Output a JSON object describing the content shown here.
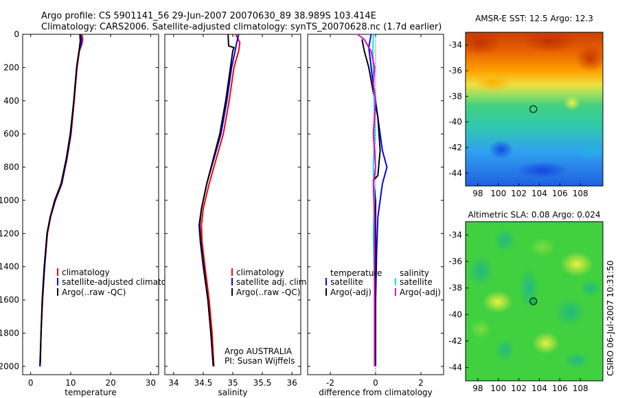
{
  "titles": {
    "line1": "Argo profile: CS 5901141_56 29-Jun-2007 20070630_89 38.989S 103.414E",
    "line2": "Climatology: CARS2006. Satellite-adjusted climatology: synTS_20070628.nc (1.7d earlier)"
  },
  "colors": {
    "climatology": "#ff0000",
    "satellite": "#0000ff",
    "argo": "#000000",
    "satellite_sal": "#00e5e5",
    "argo_sal": "#e000e0"
  },
  "footer": {
    "credit1": "Argo AUSTRALIA",
    "credit2": "PI: Susan Wijffels",
    "stamp": "CSIRO 06-Jul-2007 10:31:50"
  },
  "chart_data": [
    {
      "id": "temperature",
      "type": "line",
      "xlabel": "temperature",
      "ylabel": "",
      "xlim": [
        -2,
        32
      ],
      "ylim": [
        2050,
        0
      ],
      "xticks": [
        0,
        10,
        20,
        30
      ],
      "yticks": [
        0,
        200,
        400,
        600,
        800,
        1000,
        1200,
        1400,
        1600,
        1800,
        2000
      ],
      "legend": [
        "climatology",
        "satellite-adjusted climatology",
        "Argo(..raw -QC)"
      ],
      "series": [
        {
          "name": "climatology",
          "color": "#ff0000",
          "points": [
            [
              12.8,
              0
            ],
            [
              13.0,
              30
            ],
            [
              12.8,
              60
            ],
            [
              12.2,
              100
            ],
            [
              11.6,
              200
            ],
            [
              10.9,
              400
            ],
            [
              10.1,
              600
            ],
            [
              9.1,
              750
            ],
            [
              7.8,
              900
            ],
            [
              6.2,
              1000
            ],
            [
              5.0,
              1100
            ],
            [
              4.2,
              1200
            ],
            [
              3.5,
              1400
            ],
            [
              3.0,
              1600
            ],
            [
              2.6,
              1800
            ],
            [
              2.4,
              2000
            ]
          ]
        },
        {
          "name": "satellite-adjusted climatology",
          "color": "#0000ff",
          "points": [
            [
              12.5,
              0
            ],
            [
              12.7,
              30
            ],
            [
              12.6,
              60
            ],
            [
              12.1,
              100
            ],
            [
              11.5,
              200
            ],
            [
              10.8,
              400
            ],
            [
              10.0,
              600
            ],
            [
              9.0,
              750
            ],
            [
              7.7,
              900
            ],
            [
              6.1,
              1000
            ],
            [
              4.9,
              1100
            ],
            [
              4.1,
              1200
            ],
            [
              3.5,
              1400
            ],
            [
              2.9,
              1600
            ],
            [
              2.6,
              1800
            ],
            [
              2.3,
              2000
            ]
          ]
        },
        {
          "name": "Argo(..raw -QC)",
          "color": "#000000",
          "points": [
            [
              12.3,
              0
            ],
            [
              12.4,
              40
            ],
            [
              12.1,
              100
            ],
            [
              11.5,
              200
            ],
            [
              10.8,
              400
            ],
            [
              9.9,
              600
            ],
            [
              8.9,
              750
            ],
            [
              7.6,
              900
            ],
            [
              6.0,
              1000
            ],
            [
              4.9,
              1100
            ],
            [
              4.1,
              1200
            ],
            [
              3.4,
              1400
            ],
            [
              2.9,
              1600
            ],
            [
              2.6,
              1800
            ],
            [
              2.4,
              1980
            ]
          ]
        }
      ]
    },
    {
      "id": "salinity",
      "type": "line",
      "xlabel": "salinity",
      "ylabel": "",
      "xlim": [
        33.85,
        36.15
      ],
      "ylim": [
        2050,
        0
      ],
      "xticks": [
        34,
        34.5,
        35,
        35.5,
        36
      ],
      "xticklabels": [
        "34",
        "34.5",
        "35",
        "35.5",
        "36"
      ],
      "legend": [
        "climatology",
        "satellite adj. clim.",
        "Argo(..raw -QC)"
      ],
      "series": [
        {
          "name": "climatology",
          "color": "#ff0000",
          "points": [
            [
              35.05,
              0
            ],
            [
              35.12,
              50
            ],
            [
              35.1,
              100
            ],
            [
              35.02,
              200
            ],
            [
              34.94,
              400
            ],
            [
              34.84,
              600
            ],
            [
              34.72,
              750
            ],
            [
              34.6,
              900
            ],
            [
              34.5,
              1050
            ],
            [
              34.47,
              1150
            ],
            [
              34.48,
              1250
            ],
            [
              34.53,
              1400
            ],
            [
              34.6,
              1600
            ],
            [
              34.65,
              1800
            ],
            [
              34.68,
              2000
            ]
          ]
        },
        {
          "name": "satellite adj. clim.",
          "color": "#0000ff",
          "points": [
            [
              35.1,
              0
            ],
            [
              35.06,
              60
            ],
            [
              35.04,
              100
            ],
            [
              34.98,
              200
            ],
            [
              34.9,
              400
            ],
            [
              34.8,
              600
            ],
            [
              34.68,
              750
            ],
            [
              34.56,
              900
            ],
            [
              34.47,
              1050
            ],
            [
              34.43,
              1150
            ],
            [
              34.45,
              1250
            ],
            [
              34.5,
              1400
            ],
            [
              34.58,
              1600
            ],
            [
              34.63,
              1800
            ],
            [
              34.67,
              2000
            ]
          ]
        },
        {
          "name": "Argo(..raw -QC)",
          "color": "#000000",
          "points": [
            [
              34.92,
              0
            ],
            [
              34.93,
              70
            ],
            [
              35.02,
              80
            ],
            [
              35.0,
              100
            ],
            [
              34.96,
              200
            ],
            [
              34.88,
              400
            ],
            [
              34.78,
              600
            ],
            [
              34.67,
              750
            ],
            [
              34.56,
              900
            ],
            [
              34.47,
              1050
            ],
            [
              34.44,
              1150
            ],
            [
              34.46,
              1250
            ],
            [
              34.51,
              1400
            ],
            [
              34.58,
              1600
            ],
            [
              34.63,
              1800
            ],
            [
              34.67,
              2000
            ]
          ]
        }
      ]
    },
    {
      "id": "difference",
      "type": "line",
      "xlabel": "difference from climatology",
      "ylabel": "",
      "xlim": [
        -3,
        3
      ],
      "ylim": [
        2050,
        0
      ],
      "xticks": [
        -2,
        0,
        2
      ],
      "legend_left_title": "temperature",
      "legend_right_title": "salinity",
      "legend": [
        "satellite",
        "Argo(-adj)",
        "satellite",
        "Argo(-adj)"
      ],
      "series": [
        {
          "name": "temperature satellite",
          "color": "#0000ff",
          "points": [
            [
              -0.2,
              0
            ],
            [
              -0.3,
              80
            ],
            [
              -0.15,
              250
            ],
            [
              0.0,
              400
            ],
            [
              0.3,
              700
            ],
            [
              0.5,
              800
            ],
            [
              0.3,
              900
            ],
            [
              0.1,
              1100
            ],
            [
              0.05,
              1300
            ],
            [
              0.0,
              1600
            ],
            [
              0.0,
              2000
            ]
          ]
        },
        {
          "name": "temperature Argo(-adj)",
          "color": "#000000",
          "points": [
            [
              -0.6,
              30
            ],
            [
              -0.5,
              100
            ],
            [
              -0.3,
              200
            ],
            [
              -0.1,
              350
            ],
            [
              0.1,
              500
            ],
            [
              0.2,
              700
            ],
            [
              0.1,
              850
            ],
            [
              -0.1,
              880
            ],
            [
              0.0,
              1000
            ],
            [
              0.0,
              1200
            ],
            [
              0.0,
              1600
            ],
            [
              0.0,
              1990
            ]
          ]
        },
        {
          "name": "salinity satellite",
          "color": "#00e5e5",
          "points": [
            [
              -0.1,
              0
            ],
            [
              -0.12,
              100
            ],
            [
              -0.08,
              300
            ],
            [
              -0.04,
              600
            ],
            [
              -0.1,
              800
            ],
            [
              -0.05,
              1000
            ],
            [
              -0.1,
              1200
            ],
            [
              -0.05,
              1500
            ],
            [
              -0.05,
              1800
            ],
            [
              -0.05,
              2000
            ]
          ]
        },
        {
          "name": "salinity Argo(-adj)",
          "color": "#e000e0",
          "points": [
            [
              -0.8,
              0
            ],
            [
              -0.5,
              30
            ],
            [
              -0.3,
              80
            ],
            [
              -0.2,
              100
            ],
            [
              -0.05,
              200
            ],
            [
              -0.1,
              300
            ],
            [
              0.0,
              400
            ],
            [
              -0.1,
              600
            ],
            [
              0.0,
              800
            ],
            [
              -0.1,
              900
            ],
            [
              -0.05,
              1100
            ],
            [
              -0.05,
              1500
            ],
            [
              -0.05,
              2000
            ]
          ]
        }
      ]
    },
    {
      "id": "sst-map",
      "type": "heatmap",
      "title": "AMSR-E SST: 12.5 Argo: 12.3",
      "xticks": [
        98,
        100,
        102,
        104,
        106,
        108
      ],
      "yticks": [
        -34,
        -36,
        -38,
        -40,
        -42,
        -44
      ],
      "xlim": [
        96.8,
        110.2
      ],
      "ylim": [
        -45,
        -33
      ],
      "marker": {
        "lon": 103.41,
        "lat": -39.0
      }
    },
    {
      "id": "sla-map",
      "type": "heatmap",
      "title": "Altimetric SLA: 0.08 Argo: 0.024",
      "xticks": [
        98,
        100,
        102,
        104,
        106,
        108
      ],
      "yticks": [
        -34,
        -36,
        -38,
        -40,
        -42,
        -44
      ],
      "xlim": [
        96.8,
        110.2
      ],
      "ylim": [
        -45,
        -33
      ],
      "marker": {
        "lon": 103.41,
        "lat": -39.0
      }
    }
  ]
}
